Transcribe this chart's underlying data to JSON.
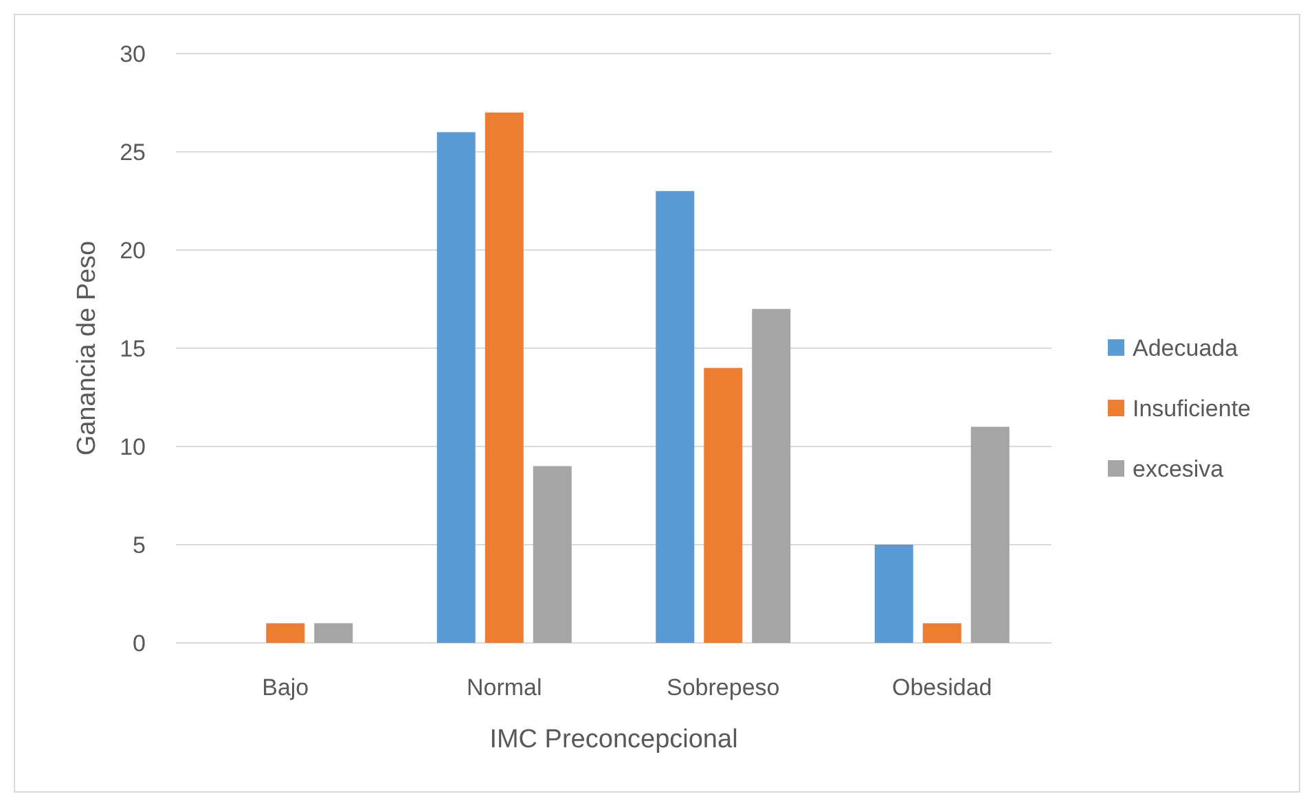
{
  "chart_data": {
    "type": "bar",
    "xlabel": "IMC Preconcepcional",
    "ylabel": "Ganancia de Peso",
    "categories": [
      "Bajo",
      "Normal",
      "Sobrepeso",
      "Obesidad"
    ],
    "series": [
      {
        "name": "Adecuada",
        "color": "#5b9bd5",
        "values": [
          0,
          26,
          23,
          5
        ]
      },
      {
        "name": "Insuficiente",
        "color": "#ed7d31",
        "values": [
          1,
          27,
          14,
          1
        ]
      },
      {
        "name": "excesiva",
        "color": "#a5a5a5",
        "values": [
          1,
          9,
          17,
          11
        ]
      }
    ],
    "ylim": [
      0,
      30
    ],
    "yticks": [
      0,
      5,
      10,
      15,
      20,
      25,
      30
    ],
    "grid": "y",
    "legend": "right"
  }
}
